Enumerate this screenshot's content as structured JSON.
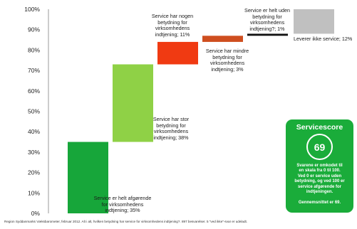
{
  "chart_data": {
    "type": "bar",
    "subtype": "waterfall",
    "ylim": [
      0,
      100
    ],
    "yticks": [
      "0%",
      "10%",
      "20%",
      "30%",
      "40%",
      "50%",
      "60%",
      "70%",
      "80%",
      "90%",
      "100%"
    ],
    "grid": false,
    "segments": [
      {
        "label": "Service er helt afgørende\nfor virksomhedens\nindtjening; 35%",
        "value": 35,
        "base": 0,
        "color": "#17a63a"
      },
      {
        "label": "Service har stor\nbetydning for\nvirksomhedens\nindtjening; 38%",
        "value": 38,
        "base": 35,
        "color": "#8fd146"
      },
      {
        "label": "Service har nogen\nbetydning for\nvirksomhedens\nindtjening; 11%",
        "value": 11,
        "base": 73,
        "color": "#f03a12"
      },
      {
        "label": "Service har mindre\nbetydning for\nvirksomhedens\nindtjening; 3%",
        "value": 3,
        "base": 84,
        "color": "#cf4e1f"
      },
      {
        "label": "Service er helt uden\nbetydning for\nvirksomhedens\nindtjening?; 1%",
        "value": 1,
        "base": 87,
        "color": "#111111"
      },
      {
        "label": "Leverer ikke service; 12%",
        "value": 12,
        "base": 88,
        "color": "#c0c0c0"
      }
    ]
  },
  "score_box": {
    "title": "Servicescore",
    "score": "69",
    "description": "Svarene er omkodet til\nen skala fra 0 til 100.\nVed 0 er service uden\nbetydning, og ved 100 er\nservice afgørende for\nindtjeningen.",
    "average": "Gennemsnittet er 69.",
    "color": "#1aac3a"
  },
  "footnote": "Region Syddanmarks Væksbarometer, februar 2012. Alt i alt, hvilken betydning har service for virksomhedens indtjening?. 897 besvarelser. 5 \"ved ikke\"-svar er udeladt."
}
